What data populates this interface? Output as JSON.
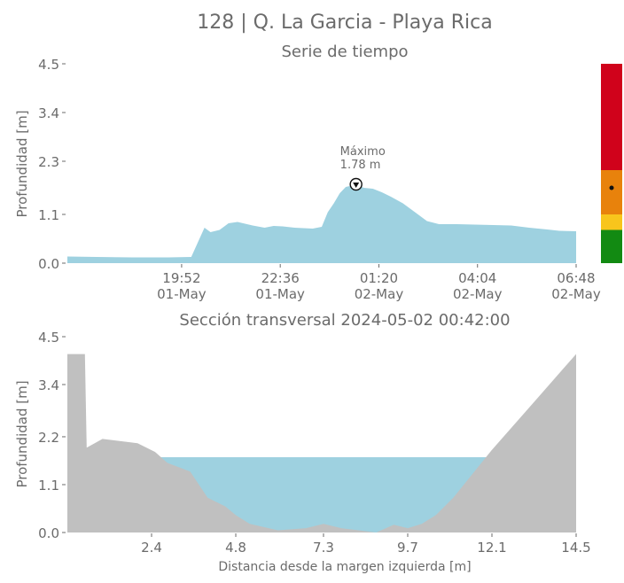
{
  "title": "128 | Q. La Garcia - Playa Rica",
  "colors": {
    "water": "#9ed1e0",
    "terrain": "#c0c0c0",
    "text": "#6b6b6b",
    "alert_red": "#d0021b",
    "alert_orange": "#e8820c",
    "alert_yellow": "#f8c51c",
    "alert_green": "#128a12"
  },
  "chart_data": [
    {
      "type": "area",
      "title": "Serie de tiempo",
      "ylabel": "Profundidad [m]",
      "ylim": [
        0,
        4.5
      ],
      "yticks": [
        "0.0",
        "1.1",
        "2.3",
        "3.4",
        "4.5"
      ],
      "ytick_values": [
        0.0,
        1.1,
        2.3,
        3.4,
        4.5
      ],
      "xticks": [
        {
          "time": "19:52",
          "date": "01-May"
        },
        {
          "time": "22:36",
          "date": "01-May"
        },
        {
          "time": "01:20",
          "date": "02-May"
        },
        {
          "time": "04:04",
          "date": "02-May"
        },
        {
          "time": "06:48",
          "date": "02-May"
        }
      ],
      "x_start": "2024-05-01 16:42",
      "x_end": "2024-05-02 06:48",
      "series": [
        {
          "x": [
            "2024-05-01 16:42",
            "2024-05-01 17:30",
            "2024-05-01 18:30",
            "2024-05-01 19:30",
            "2024-05-01 20:08",
            "2024-05-01 20:20",
            "2024-05-01 20:30",
            "2024-05-01 20:40",
            "2024-05-01 20:55",
            "2024-05-01 21:10",
            "2024-05-01 21:25",
            "2024-05-01 21:50",
            "2024-05-01 22:10",
            "2024-05-01 22:25",
            "2024-05-01 22:40",
            "2024-05-01 23:00",
            "2024-05-01 23:30",
            "2024-05-01 23:45",
            "2024-05-01 23:55",
            "2024-05-02 00:05",
            "2024-05-02 00:15",
            "2024-05-02 00:25",
            "2024-05-02 00:35",
            "2024-05-02 00:42",
            "2024-05-02 00:55",
            "2024-05-02 01:10",
            "2024-05-02 01:25",
            "2024-05-02 01:40",
            "2024-05-02 02:00",
            "2024-05-02 02:20",
            "2024-05-02 02:40",
            "2024-05-02 03:00",
            "2024-05-02 03:30",
            "2024-05-02 04:00",
            "2024-05-02 04:30",
            "2024-05-02 05:00",
            "2024-05-02 05:30",
            "2024-05-02 06:00",
            "2024-05-02 06:20",
            "2024-05-02 06:48"
          ],
          "y": [
            0.15,
            0.14,
            0.13,
            0.13,
            0.14,
            0.5,
            0.8,
            0.7,
            0.75,
            0.9,
            0.93,
            0.85,
            0.8,
            0.84,
            0.83,
            0.8,
            0.78,
            0.82,
            1.15,
            1.35,
            1.58,
            1.72,
            1.75,
            1.78,
            1.7,
            1.68,
            1.6,
            1.5,
            1.35,
            1.15,
            0.95,
            0.88,
            0.88,
            0.87,
            0.86,
            0.85,
            0.8,
            0.76,
            0.73,
            0.72
          ]
        }
      ],
      "annotation": {
        "label": "Máximo",
        "value_text": "1.78 m",
        "time": "2024-05-02 00:42",
        "value": 1.78
      },
      "alert_bar": {
        "ylim": [
          0,
          4.5
        ],
        "bands": [
          {
            "from": 0.0,
            "to": 0.75,
            "color": "#128a12"
          },
          {
            "from": 0.75,
            "to": 1.1,
            "color": "#f8c51c"
          },
          {
            "from": 1.1,
            "to": 2.1,
            "color": "#e8820c"
          },
          {
            "from": 2.1,
            "to": 4.5,
            "color": "#d0021b"
          }
        ],
        "current_value": 1.7
      }
    },
    {
      "type": "area",
      "title": "Sección transversal 2024-05-02 00:42:00",
      "xlabel": "Distancia desde la margen izquierda [m]",
      "ylabel": "Profundidad [m]",
      "xlim": [
        0,
        14.5
      ],
      "ylim": [
        0,
        4.5
      ],
      "xticks": [
        "2.4",
        "4.8",
        "7.3",
        "9.7",
        "12.1",
        "14.5"
      ],
      "xtick_values": [
        2.4,
        4.8,
        7.3,
        9.7,
        12.1,
        14.5
      ],
      "yticks": [
        "0.0",
        "1.1",
        "2.2",
        "3.4",
        "4.5"
      ],
      "ytick_values": [
        0.0,
        1.1,
        2.2,
        3.4,
        4.5
      ],
      "water_level": 1.73,
      "profile": {
        "x": [
          0,
          0.5,
          0.55,
          1.0,
          2.0,
          2.5,
          2.85,
          3.5,
          4.0,
          4.5,
          4.8,
          5.2,
          6.0,
          6.8,
          7.3,
          7.8,
          8.3,
          8.8,
          9.3,
          9.7,
          10.1,
          10.5,
          11.0,
          12.1,
          13.3,
          14.5
        ],
        "y": [
          4.1,
          4.1,
          1.95,
          2.15,
          2.05,
          1.85,
          1.6,
          1.4,
          0.8,
          0.6,
          0.4,
          0.2,
          0.05,
          0.1,
          0.2,
          0.1,
          0.05,
          0.0,
          0.18,
          0.1,
          0.2,
          0.4,
          0.8,
          1.9,
          3.0,
          4.1
        ]
      }
    }
  ]
}
